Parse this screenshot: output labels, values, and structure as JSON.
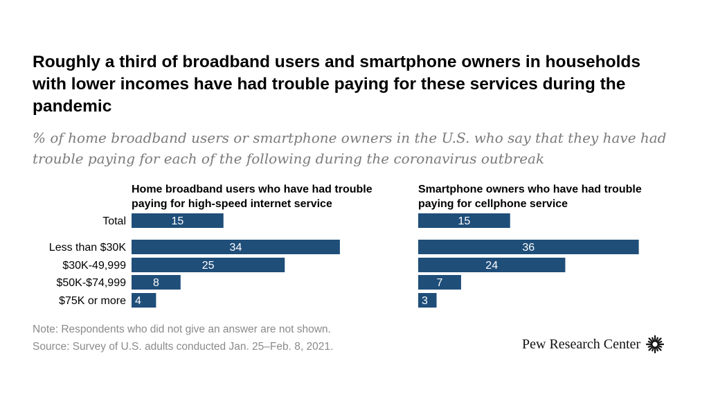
{
  "title": "Roughly a third of broadband users and smartphone owners in households with lower incomes have had trouble paying for these services during the pandemic",
  "subtitle": "% of home broadband users or smartphone owners in the U.S. who say that they have had trouble paying for each of the following during the coronavirus outbreak",
  "footer": {
    "note": "Note: Respondents who did not give an answer are not shown.",
    "source": "Source: Survey of U.S. adults conducted Jan. 25–Feb. 8, 2021."
  },
  "logo": {
    "text": "Pew Research Center",
    "icon": "pew-sunburst-icon"
  },
  "chart_data": [
    {
      "type": "bar",
      "orientation": "horizontal",
      "title": "Home broadband users who have had trouble paying for high-speed internet service",
      "categories": [
        "Total",
        "Less than $30K",
        "$30K-49,999",
        "$50K-$74,999",
        "$75K or more"
      ],
      "values": [
        15,
        34,
        25,
        8,
        4
      ],
      "data_labels": [
        "15",
        "34",
        "25",
        "8",
        "4"
      ],
      "bar_color": "#1f4e79"
    },
    {
      "type": "bar",
      "orientation": "horizontal",
      "title": "Smartphone owners who have had trouble paying for cellphone service",
      "categories": [
        "Total",
        "Less than $30K",
        "$30K-49,999",
        "$50K-$74,999",
        "$75K or more"
      ],
      "values": [
        15,
        36,
        24,
        7,
        3
      ],
      "data_labels": [
        "15",
        "36",
        "24",
        "7",
        "3"
      ],
      "bar_color": "#1f4e79"
    }
  ]
}
